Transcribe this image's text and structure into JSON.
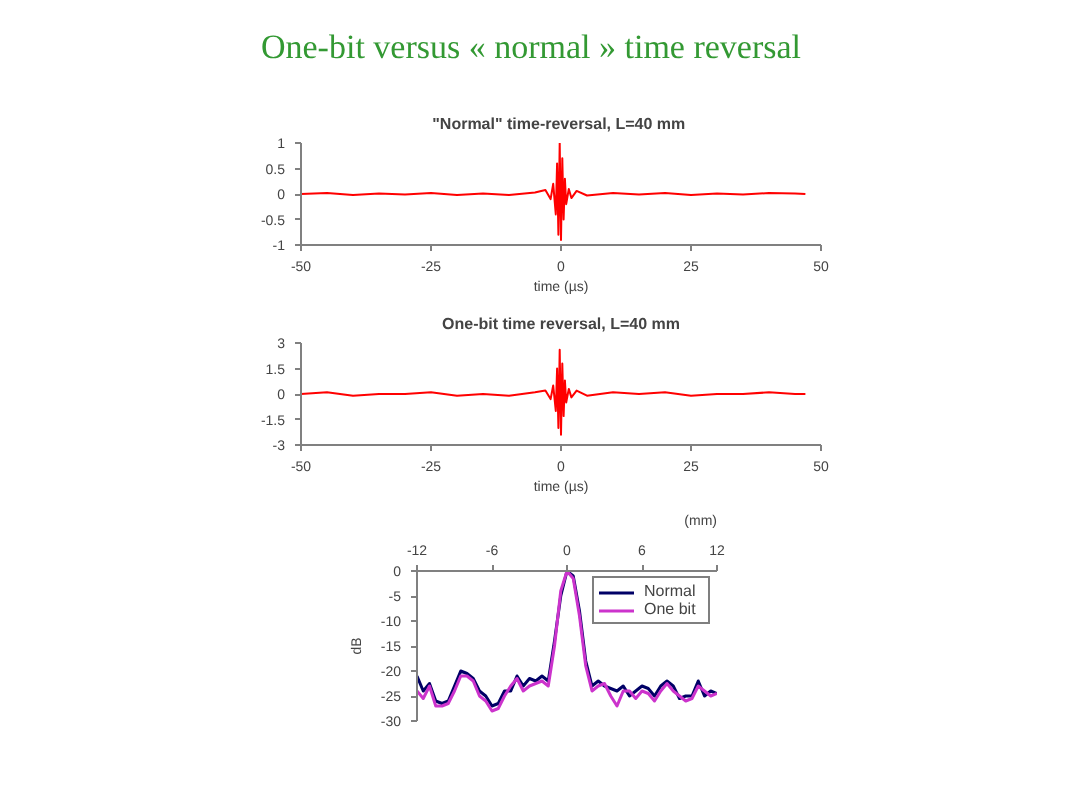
{
  "chart_data": [
    {
      "type": "other",
      "title": "One-bit versus « normal » time reversal"
    },
    {
      "type": "line",
      "title": "\"Normal\" time-reversal,  L=40 mm",
      "xlabel": "time (µs)",
      "xlim": [
        -50,
        50
      ],
      "xticks": [
        -50,
        -25,
        0,
        25,
        50
      ],
      "ylim": [
        -1,
        1
      ],
      "yticks": [
        -1,
        -0.5,
        0,
        0.5,
        1
      ],
      "grid": false,
      "legend": false,
      "x": [
        -50,
        -45,
        -40,
        -35,
        -30,
        -25,
        -20,
        -15,
        -10,
        -5,
        -3,
        -2,
        -1.5,
        -1,
        -0.75,
        -0.5,
        -0.25,
        0,
        0.25,
        0.5,
        0.75,
        1,
        1.5,
        2,
        3,
        5,
        10,
        15,
        20,
        25,
        30,
        35,
        40,
        45,
        47
      ],
      "series": [
        {
          "color": "#ff0000",
          "values": [
            0,
            0.02,
            -0.02,
            0.01,
            -0.01,
            0.02,
            -0.02,
            0.01,
            -0.02,
            0.03,
            0.08,
            -0.1,
            0.2,
            -0.4,
            0.6,
            -0.8,
            1,
            -0.9,
            0.7,
            -0.5,
            0.3,
            -0.2,
            0.1,
            -0.08,
            0.06,
            -0.03,
            0.02,
            -0.01,
            0.02,
            -0.02,
            0.01,
            -0.01,
            0.02,
            0.01,
            0
          ]
        }
      ]
    },
    {
      "type": "line",
      "title": "One-bit time reversal, L=40 mm",
      "xlabel": "time (µs)",
      "xlim": [
        -50,
        50
      ],
      "xticks": [
        -50,
        -25,
        0,
        25,
        50
      ],
      "ylim": [
        -3,
        3
      ],
      "yticks": [
        -3,
        -1.5,
        0,
        1.5,
        3
      ],
      "grid": false,
      "legend": false,
      "x": [
        -50,
        -45,
        -40,
        -35,
        -30,
        -25,
        -20,
        -15,
        -10,
        -5,
        -3,
        -2,
        -1.5,
        -1,
        -0.75,
        -0.5,
        -0.25,
        0,
        0.25,
        0.5,
        0.75,
        1,
        1.5,
        2,
        3,
        5,
        10,
        15,
        20,
        25,
        30,
        35,
        40,
        45,
        47
      ],
      "series": [
        {
          "color": "#ff0000",
          "values": [
            0,
            0.1,
            -0.1,
            0,
            0,
            0.1,
            -0.1,
            0,
            -0.1,
            0.1,
            0.2,
            -0.3,
            0.5,
            -1,
            1.5,
            -2,
            2.6,
            -2.4,
            1.8,
            -1.3,
            0.8,
            -0.5,
            0.3,
            -0.2,
            0.2,
            -0.1,
            0.1,
            0,
            0.1,
            -0.1,
            0,
            0,
            0.1,
            0,
            0
          ]
        }
      ]
    },
    {
      "type": "line",
      "xlabel": "(mm)",
      "ylabel": "dB",
      "xlim": [
        -12,
        12
      ],
      "xticks": [
        -12,
        -6,
        0,
        6,
        12
      ],
      "ylim": [
        -30,
        0
      ],
      "yticks": [
        0,
        -5,
        -10,
        -15,
        -20,
        -25,
        -30
      ],
      "grid": false,
      "legend": "top right",
      "x": [
        -12,
        -11.5,
        -11,
        -10.5,
        -10,
        -9.5,
        -9,
        -8.5,
        -8,
        -7.5,
        -7,
        -6.5,
        -6,
        -5.5,
        -5,
        -4.5,
        -4,
        -3.5,
        -3,
        -2.5,
        -2,
        -1.5,
        -1,
        -0.5,
        0,
        0.5,
        1,
        1.5,
        2,
        2.5,
        3,
        3.5,
        4,
        4.5,
        5,
        5.5,
        6,
        6.5,
        7,
        7.5,
        8,
        8.5,
        9,
        9.5,
        10,
        10.5,
        11,
        11.5,
        12
      ],
      "series": [
        {
          "name": "Normal",
          "color": "#000066",
          "values": [
            -21,
            -24,
            -22.5,
            -26,
            -26.5,
            -26,
            -23,
            -20,
            -20.5,
            -21.5,
            -24,
            -25,
            -27,
            -26.5,
            -24,
            -24,
            -21,
            -23,
            -21.5,
            -22,
            -21,
            -22,
            -14,
            -5,
            0,
            -1,
            -8,
            -18,
            -23,
            -22,
            -23,
            -23.5,
            -24,
            -23,
            -25,
            -24,
            -23,
            -23.5,
            -25,
            -23,
            -22,
            -23,
            -25.5,
            -25,
            -25,
            -22,
            -25,
            -24,
            -24.5
          ]
        },
        {
          "name": "One bit",
          "color": "#cc33cc",
          "values": [
            -24,
            -25.5,
            -23,
            -27,
            -27,
            -26.5,
            -24,
            -21,
            -21,
            -22,
            -25,
            -26,
            -28,
            -27.5,
            -25,
            -23,
            -21.5,
            -24,
            -23,
            -22.5,
            -22,
            -23,
            -15,
            -4,
            0,
            -1.5,
            -9,
            -19,
            -24,
            -23,
            -22.5,
            -25,
            -27,
            -24,
            -24,
            -25.5,
            -24,
            -24.5,
            -26,
            -24,
            -22.5,
            -24,
            -25,
            -26,
            -25.5,
            -23,
            -24,
            -25,
            -24.5
          ]
        }
      ]
    }
  ]
}
